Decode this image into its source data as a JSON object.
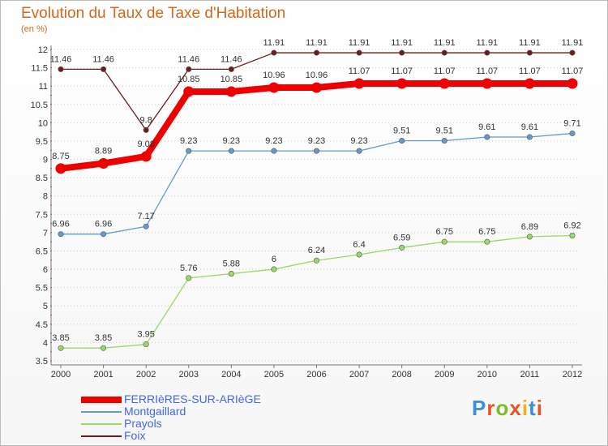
{
  "title": "Evolution du Taux de Taxe d'Habitation",
  "subtitle": "(en %)",
  "logo_text": "Proxiti",
  "chart_data": {
    "type": "line",
    "title": "Evolution du Taux de Taxe d'Habitation",
    "ylabel": "(en %)",
    "xlabel": "",
    "ylim": [
      3.5,
      12
    ],
    "yticks": [
      "3.5",
      "4",
      "4.5",
      "5",
      "5.5",
      "6",
      "6.5",
      "7",
      "7.5",
      "8",
      "8.5",
      "9",
      "9.5",
      "10",
      "10.5",
      "11",
      "11.5",
      "12"
    ],
    "categories": [
      "2000",
      "2001",
      "2002",
      "2003",
      "2004",
      "2005",
      "2006",
      "2007",
      "2008",
      "2009",
      "2010",
      "2011",
      "2012"
    ],
    "grid": "horizontal dotted",
    "series": [
      {
        "name": "Foix",
        "color": "#6b1c1c",
        "weight": "thin",
        "values": [
          11.46,
          11.46,
          9.8,
          11.46,
          11.46,
          11.91,
          11.91,
          11.91,
          11.91,
          11.91,
          11.91,
          11.91,
          11.91
        ],
        "labels": [
          "11.46",
          "11.46",
          "9.8",
          "11.46",
          "11.46",
          "11.91",
          "11.91",
          "11.91",
          "11.91",
          "11.91",
          "11.91",
          "11.91",
          "11.91"
        ]
      },
      {
        "name": "Montgaillard",
        "color": "#6699cc",
        "weight": "thin",
        "values": [
          6.96,
          6.96,
          7.17,
          9.23,
          9.23,
          9.23,
          9.23,
          9.23,
          9.51,
          9.51,
          9.61,
          9.61,
          9.71
        ],
        "labels": [
          "6.96",
          "6.96",
          "7.17",
          "9.23",
          "9.23",
          "9.23",
          "9.23",
          "9.23",
          "9.51",
          "9.51",
          "9.61",
          "9.61",
          "9.71"
        ]
      },
      {
        "name": "Prayols",
        "color": "#99d966",
        "weight": "thin",
        "values": [
          3.85,
          3.85,
          3.95,
          5.76,
          5.88,
          6,
          6.24,
          6.4,
          6.59,
          6.75,
          6.75,
          6.89,
          6.92
        ],
        "labels": [
          "3.85",
          "3.85",
          "3.95",
          "5.76",
          "5.88",
          "6",
          "6.24",
          "6.4",
          "6.59",
          "6.75",
          "6.75",
          "6.89",
          "6.92"
        ]
      },
      {
        "name": "FERRIèRES-SUR-ARIèGE",
        "color": "#ee0000",
        "weight": "thick",
        "values": [
          8.75,
          8.89,
          9.08,
          10.85,
          10.85,
          10.96,
          10.96,
          11.07,
          11.07,
          11.07,
          11.07,
          11.07,
          11.07
        ],
        "labels": [
          "8.75",
          "8.89",
          "9.08",
          "10.85",
          "10.85",
          "10.96",
          "10.96",
          "11.07",
          "11.07",
          "11.07",
          "11.07",
          "11.07",
          "11.07"
        ]
      }
    ],
    "legend": [
      {
        "name": "FERRIèRES-SUR-ARIèGE",
        "color": "#ee0000",
        "weight": "thick"
      },
      {
        "name": "Montgaillard",
        "color": "#6699cc",
        "weight": "thin"
      },
      {
        "name": "Prayols",
        "color": "#99d966",
        "weight": "thin"
      },
      {
        "name": "Foix",
        "color": "#6b1c1c",
        "weight": "thin"
      }
    ],
    "legend_position": "bottom-left"
  }
}
